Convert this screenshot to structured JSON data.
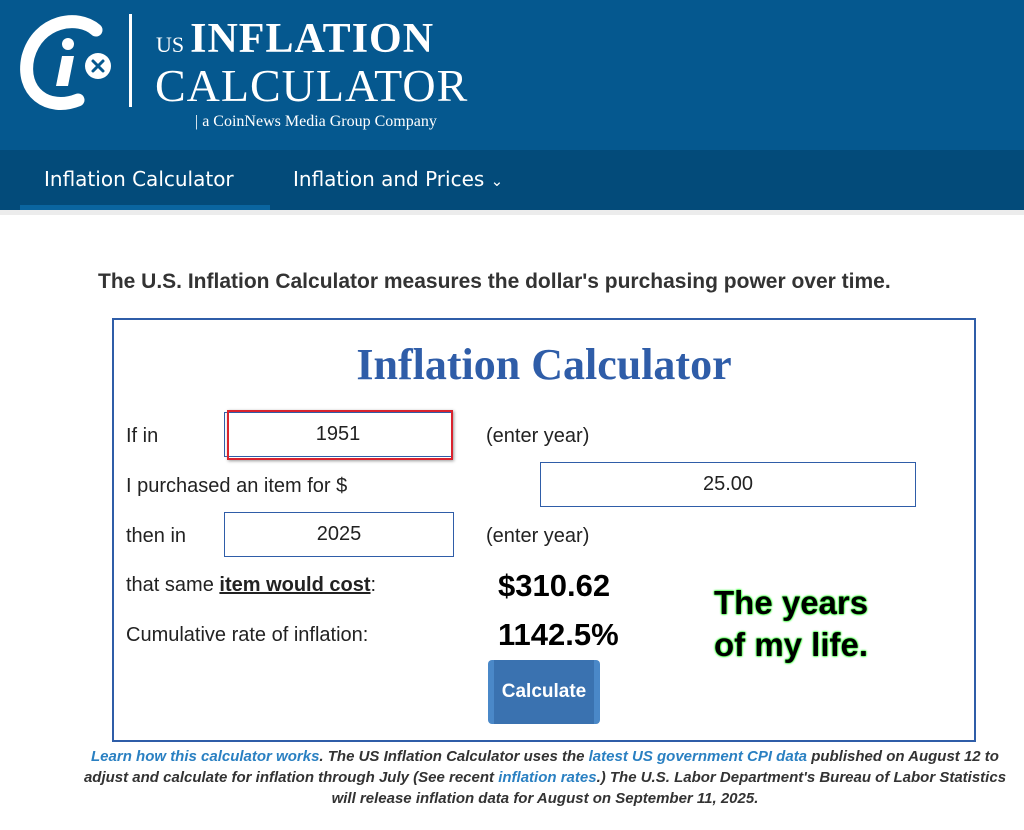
{
  "header": {
    "logo_us": "US",
    "logo_inflation": "INFLATION",
    "logo_calculator": "CALCULATOR",
    "logo_sub": "| a CoinNews Media Group Company"
  },
  "nav": {
    "items": [
      {
        "label": "Inflation Calculator"
      },
      {
        "label": "Inflation and Prices"
      }
    ],
    "chevron": "chevron-down-icon"
  },
  "tagline": "The U.S. Inflation Calculator measures the dollar's purchasing power over time.",
  "calculator": {
    "title": "Inflation Calculator",
    "if_in_label": "If in",
    "start_year": "1951",
    "enter_year_1": "(enter year)",
    "purchased_label": "I purchased an item for $",
    "amount": "25.00",
    "then_in_label": "then in",
    "end_year": "2025",
    "enter_year_2": "(enter year)",
    "cost_label_pre": "that same ",
    "cost_label_link": "item would cost",
    "cost_label_post": ":",
    "cost_value": "$310.62",
    "rate_label": "Cumulative rate of inflation:",
    "rate_value": "1142.5%",
    "button": "Calculate",
    "note_line1": "The years",
    "note_line2": "of my life."
  },
  "footer": {
    "link1": "Learn how this calculator works",
    "t1": ". The US Inflation Calculator uses the ",
    "link2": "latest US government CPI data",
    "t2": " published on August 12 to adjust and calculate for inflation through July (See recent ",
    "link3": "inflation rates",
    "t3": ".) The U.S. Labor Department's Bureau of Labor Statistics will release inflation data for August on September 11, 2025."
  },
  "colors": {
    "header": "#05588f",
    "accent": "#2f5da8",
    "highlight": "#d9232e"
  }
}
